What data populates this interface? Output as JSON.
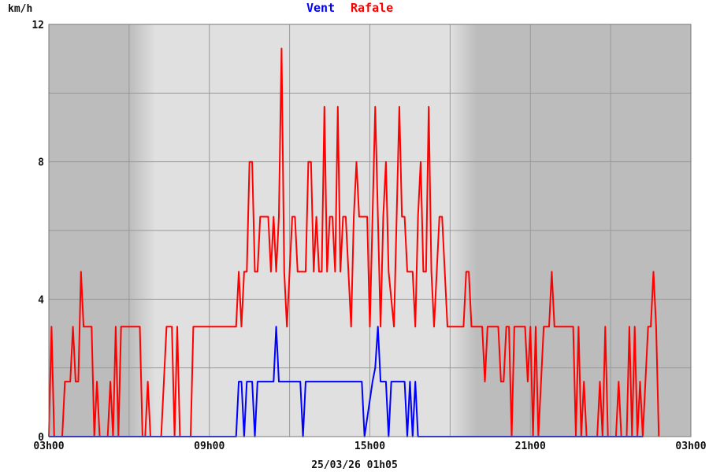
{
  "chart_data": {
    "type": "line",
    "y_unit_label": "km/h",
    "timestamp": "25/03/26 01h05",
    "ylim": [
      0,
      12
    ],
    "y_ticks": [
      "0",
      "4",
      "8",
      "12"
    ],
    "x_tick_labels": [
      "03h00",
      "09h00",
      "15h00",
      "21h00",
      "03h00"
    ],
    "x_range_hours": [
      0,
      24
    ],
    "grid": true,
    "daylight_hours": [
      3,
      16
    ],
    "colors": {
      "vent": "#0000ff",
      "rafale": "#ff0000",
      "night": "#bcbcbc",
      "day": "#e0e0e0"
    },
    "series": [
      {
        "name": "Vent",
        "color": "#0000ff",
        "points": [
          [
            0,
            0
          ],
          [
            7,
            0
          ],
          [
            7.1,
            1.6
          ],
          [
            7.2,
            1.6
          ],
          [
            7.3,
            0
          ],
          [
            7.4,
            1.6
          ],
          [
            7.6,
            1.6
          ],
          [
            7.7,
            0
          ],
          [
            7.8,
            1.6
          ],
          [
            8.4,
            1.6
          ],
          [
            8.5,
            3.2
          ],
          [
            8.6,
            1.6
          ],
          [
            9.4,
            1.6
          ],
          [
            9.5,
            0
          ],
          [
            9.6,
            1.6
          ],
          [
            11.7,
            1.6
          ],
          [
            11.8,
            0
          ],
          [
            12.1,
            1.6
          ],
          [
            12.2,
            2.0
          ],
          [
            12.3,
            3.2
          ],
          [
            12.4,
            1.6
          ],
          [
            12.6,
            1.6
          ],
          [
            12.7,
            0
          ],
          [
            12.8,
            1.6
          ],
          [
            13.3,
            1.6
          ],
          [
            13.4,
            0
          ],
          [
            13.5,
            1.6
          ],
          [
            13.6,
            0
          ],
          [
            13.7,
            1.6
          ],
          [
            13.8,
            0
          ],
          [
            22.2,
            0
          ]
        ]
      },
      {
        "name": "Rafale",
        "color": "#ff0000",
        "points": [
          [
            0,
            0
          ],
          [
            0.1,
            3.2
          ],
          [
            0.2,
            0
          ],
          [
            0.5,
            0
          ],
          [
            0.6,
            1.6
          ],
          [
            0.8,
            1.6
          ],
          [
            0.9,
            3.2
          ],
          [
            1.0,
            1.6
          ],
          [
            1.1,
            1.6
          ],
          [
            1.2,
            4.8
          ],
          [
            1.3,
            3.2
          ],
          [
            1.6,
            3.2
          ],
          [
            1.7,
            0
          ],
          [
            1.8,
            1.6
          ],
          [
            1.9,
            0
          ],
          [
            2.2,
            0
          ],
          [
            2.3,
            1.6
          ],
          [
            2.4,
            0
          ],
          [
            2.5,
            3.2
          ],
          [
            2.6,
            0
          ],
          [
            2.7,
            3.2
          ],
          [
            3.4,
            3.2
          ],
          [
            3.5,
            0
          ],
          [
            3.6,
            0
          ],
          [
            3.7,
            1.6
          ],
          [
            3.8,
            0
          ],
          [
            4.2,
            0
          ],
          [
            4.4,
            3.2
          ],
          [
            4.6,
            3.2
          ],
          [
            4.7,
            0
          ],
          [
            4.8,
            3.2
          ],
          [
            4.9,
            0
          ],
          [
            5.3,
            0
          ],
          [
            5.4,
            3.2
          ],
          [
            6.8,
            3.2
          ],
          [
            7.0,
            3.2
          ],
          [
            7.1,
            4.8
          ],
          [
            7.2,
            3.2
          ],
          [
            7.3,
            4.8
          ],
          [
            7.4,
            4.8
          ],
          [
            7.5,
            8.0
          ],
          [
            7.6,
            8.0
          ],
          [
            7.7,
            4.8
          ],
          [
            7.8,
            4.8
          ],
          [
            7.9,
            6.4
          ],
          [
            8.2,
            6.4
          ],
          [
            8.3,
            4.8
          ],
          [
            8.4,
            6.4
          ],
          [
            8.5,
            4.8
          ],
          [
            8.6,
            6.4
          ],
          [
            8.7,
            11.3
          ],
          [
            8.8,
            4.8
          ],
          [
            8.9,
            3.2
          ],
          [
            9.0,
            4.8
          ],
          [
            9.1,
            6.4
          ],
          [
            9.2,
            6.4
          ],
          [
            9.3,
            4.8
          ],
          [
            9.6,
            4.8
          ],
          [
            9.7,
            8.0
          ],
          [
            9.8,
            8.0
          ],
          [
            9.9,
            4.8
          ],
          [
            10.0,
            6.4
          ],
          [
            10.1,
            4.8
          ],
          [
            10.2,
            4.8
          ],
          [
            10.3,
            9.6
          ],
          [
            10.4,
            4.8
          ],
          [
            10.5,
            6.4
          ],
          [
            10.6,
            6.4
          ],
          [
            10.7,
            4.8
          ],
          [
            10.8,
            9.6
          ],
          [
            10.9,
            4.8
          ],
          [
            11.0,
            6.4
          ],
          [
            11.1,
            6.4
          ],
          [
            11.2,
            4.8
          ],
          [
            11.3,
            3.2
          ],
          [
            11.4,
            6.4
          ],
          [
            11.5,
            8.0
          ],
          [
            11.6,
            6.4
          ],
          [
            11.9,
            6.4
          ],
          [
            12.0,
            3.2
          ],
          [
            12.1,
            6.4
          ],
          [
            12.2,
            9.6
          ],
          [
            12.3,
            6.4
          ],
          [
            12.4,
            3.2
          ],
          [
            12.5,
            6.4
          ],
          [
            12.6,
            8.0
          ],
          [
            12.7,
            4.8
          ],
          [
            12.9,
            3.2
          ],
          [
            13.0,
            6.4
          ],
          [
            13.1,
            9.6
          ],
          [
            13.2,
            6.4
          ],
          [
            13.3,
            6.4
          ],
          [
            13.4,
            4.8
          ],
          [
            13.6,
            4.8
          ],
          [
            13.7,
            3.2
          ],
          [
            13.8,
            6.4
          ],
          [
            13.9,
            8.0
          ],
          [
            14.0,
            4.8
          ],
          [
            14.1,
            4.8
          ],
          [
            14.2,
            9.6
          ],
          [
            14.3,
            4.8
          ],
          [
            14.4,
            3.2
          ],
          [
            14.5,
            4.8
          ],
          [
            14.6,
            6.4
          ],
          [
            14.7,
            6.4
          ],
          [
            14.8,
            4.8
          ],
          [
            14.9,
            3.2
          ],
          [
            15.5,
            3.2
          ],
          [
            15.6,
            4.8
          ],
          [
            15.7,
            4.8
          ],
          [
            15.8,
            3.2
          ],
          [
            16.2,
            3.2
          ],
          [
            16.3,
            1.6
          ],
          [
            16.4,
            3.2
          ],
          [
            16.8,
            3.2
          ],
          [
            16.9,
            1.6
          ],
          [
            17.0,
            1.6
          ],
          [
            17.1,
            3.2
          ],
          [
            17.2,
            3.2
          ],
          [
            17.3,
            0
          ],
          [
            17.4,
            3.2
          ],
          [
            17.8,
            3.2
          ],
          [
            17.9,
            1.6
          ],
          [
            18.0,
            3.2
          ],
          [
            18.1,
            0
          ],
          [
            18.2,
            3.2
          ],
          [
            18.3,
            0
          ],
          [
            18.5,
            3.2
          ],
          [
            18.7,
            3.2
          ],
          [
            18.8,
            4.8
          ],
          [
            18.9,
            3.2
          ],
          [
            19.6,
            3.2
          ],
          [
            19.7,
            0
          ],
          [
            19.8,
            3.2
          ],
          [
            19.9,
            0
          ],
          [
            20.0,
            1.6
          ],
          [
            20.1,
            0
          ],
          [
            20.5,
            0
          ],
          [
            20.6,
            1.6
          ],
          [
            20.7,
            0
          ],
          [
            20.8,
            3.2
          ],
          [
            20.9,
            0
          ],
          [
            21.2,
            0
          ],
          [
            21.3,
            1.6
          ],
          [
            21.4,
            0
          ],
          [
            21.6,
            0
          ],
          [
            21.7,
            3.2
          ],
          [
            21.8,
            0
          ],
          [
            21.9,
            3.2
          ],
          [
            22.0,
            0
          ],
          [
            22.1,
            1.6
          ],
          [
            22.2,
            0
          ],
          [
            22.4,
            3.2
          ],
          [
            22.5,
            3.2
          ],
          [
            22.6,
            4.8
          ],
          [
            22.7,
            3.2
          ],
          [
            22.8,
            0
          ]
        ]
      }
    ]
  }
}
